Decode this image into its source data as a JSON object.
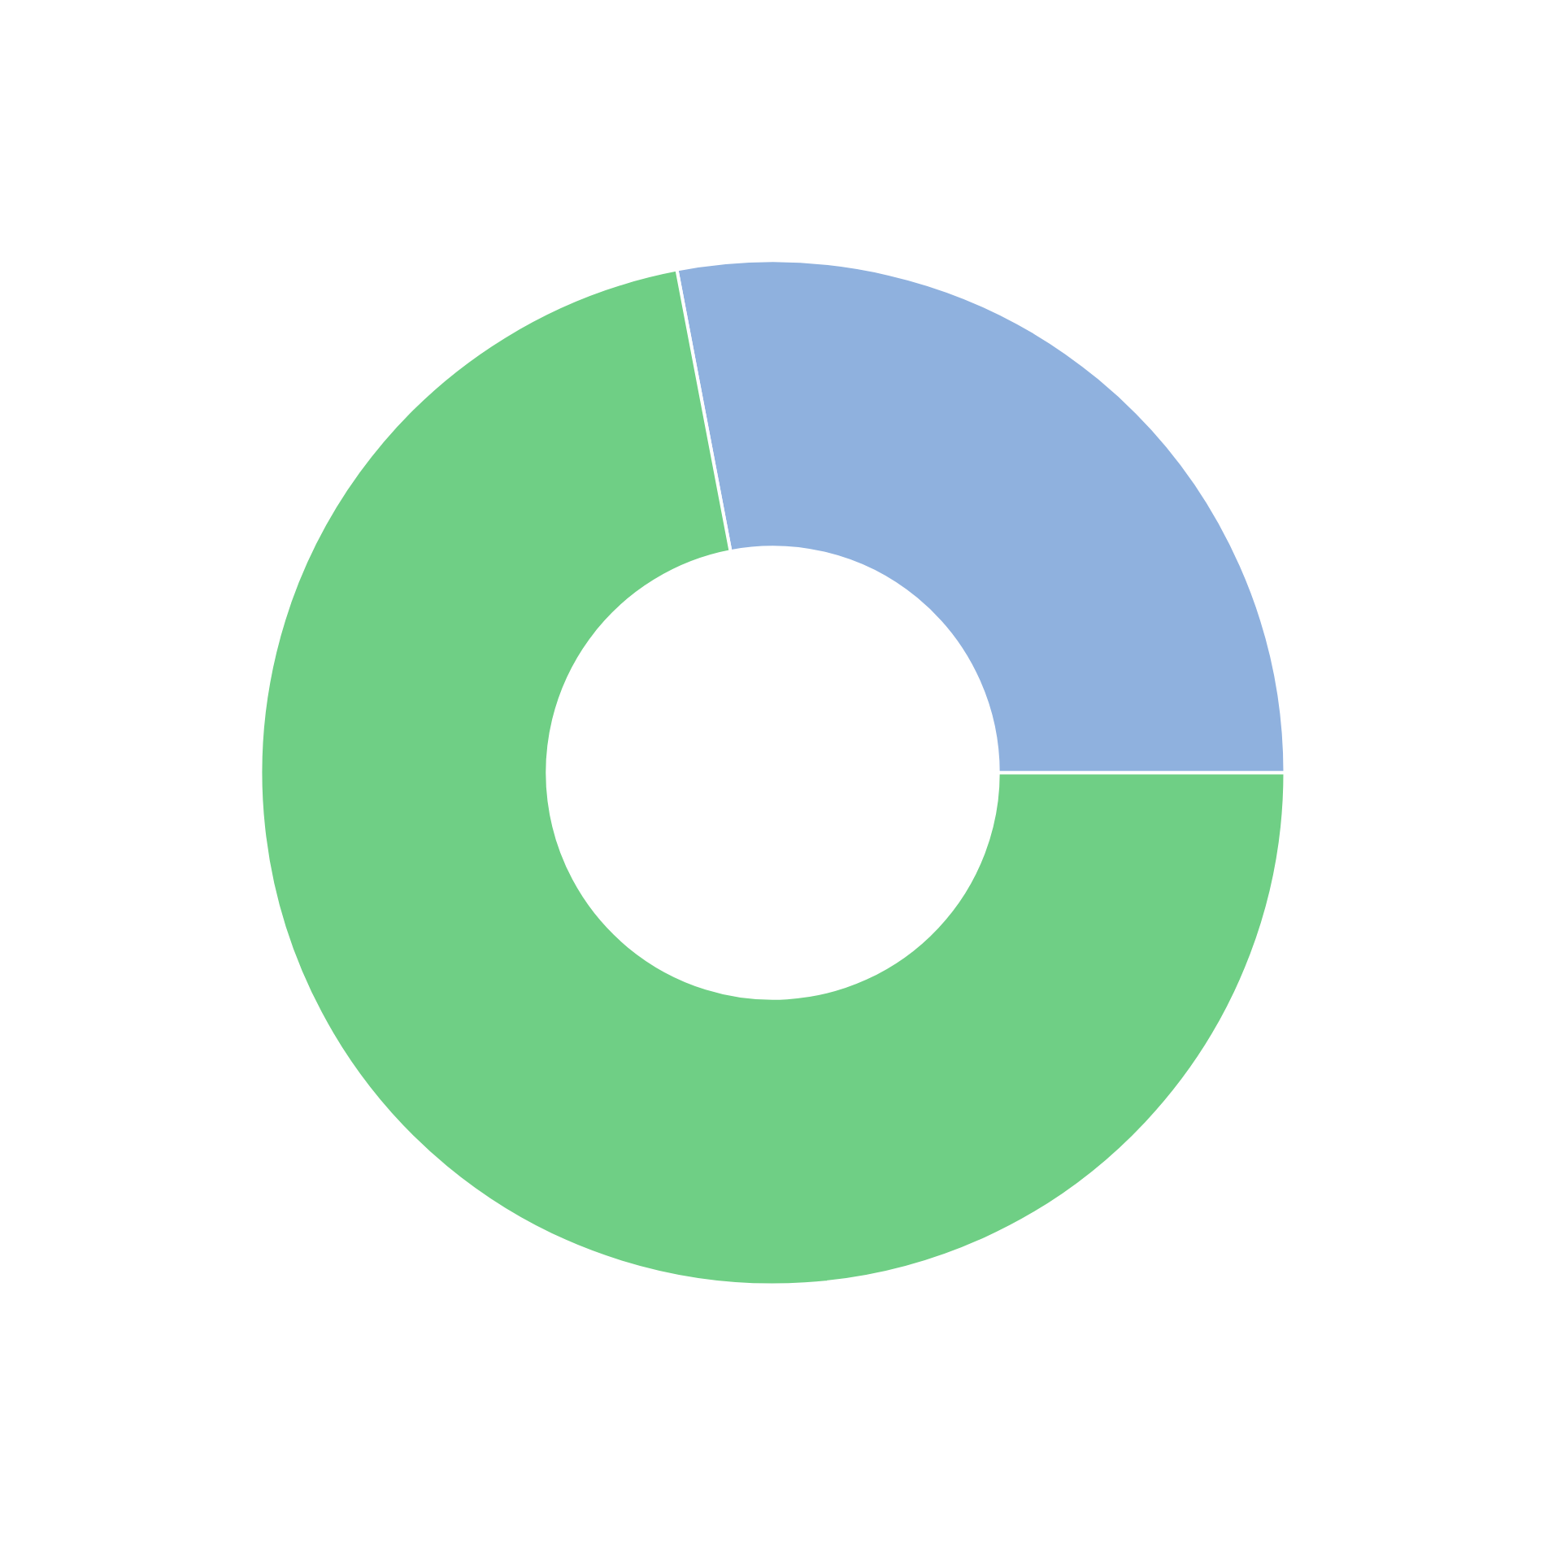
{
  "chart_data": {
    "type": "donut",
    "categories": [
      null,
      null
    ],
    "values": [
      28,
      72
    ],
    "colors": [
      "#8fb1de",
      "#6fcf85"
    ]
  }
}
